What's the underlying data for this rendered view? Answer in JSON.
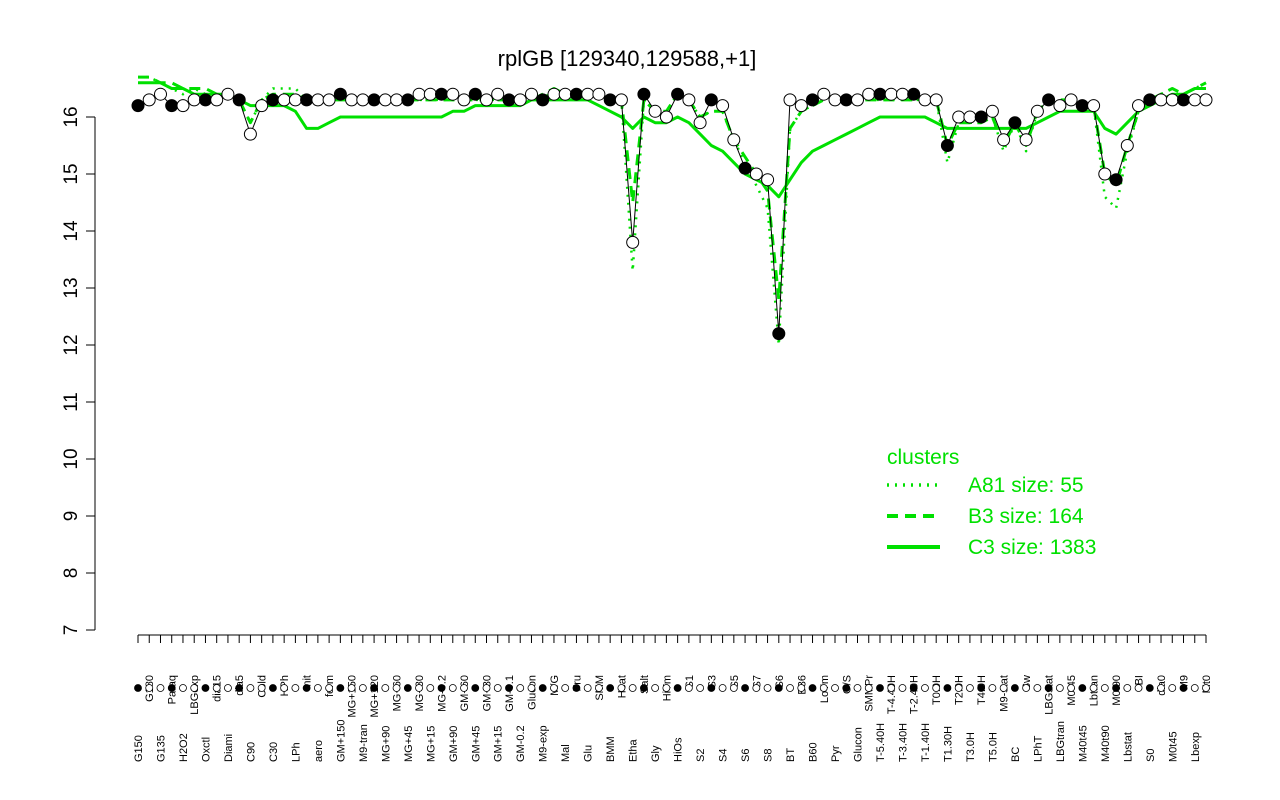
{
  "chart_data": {
    "type": "scatter",
    "title": "rplGB [129340,129588,+1]",
    "xlabel": "",
    "ylabel": "",
    "ylim": [
      7,
      17
    ],
    "yticks": [
      7,
      8,
      9,
      10,
      11,
      12,
      13,
      14,
      15,
      16
    ],
    "grid": false,
    "point_style": "filled and open circles",
    "x_tick_labels": [
      "G150",
      "G180",
      "G135",
      "Paraq",
      "H2O2",
      "LBGexp",
      "Oxctl",
      "dia15",
      "Diami",
      "dia5",
      "C90",
      "Cold",
      "C30",
      "HPh",
      "LPh",
      "nit",
      "aero",
      "ferm",
      "GM+150",
      "MG+150",
      "M9-tran",
      "MG+120",
      "MG+90",
      "MG+60",
      "MG+45",
      "MG+30",
      "MG+15",
      "MG-0.2",
      "GM+90",
      "GM+60",
      "GM+45",
      "GM+30",
      "GM+15",
      "GM-0.1",
      "GM-0.2",
      "Glucon",
      "M9-exp",
      "M/G",
      "Mal",
      "Fru",
      "Glu",
      "SMM",
      "BMM",
      "Heat",
      "Etha",
      "Salt",
      "Gly",
      "HiTm",
      "HiOs",
      "S1",
      "S2",
      "S3",
      "S4",
      "S5",
      "S6",
      "S7",
      "S8",
      "S6",
      "BT",
      "B36",
      "B60",
      "LoTm",
      "Pyr",
      "G/S",
      "Glucon",
      "SMMPr",
      "T-5.40H",
      "T-4.40H",
      "T-3.40H",
      "T-2.40H",
      "T-1.40H",
      "T0.0H",
      "T1.30H",
      "T2.0H",
      "T3.0H",
      "T4.0H",
      "T5.0H",
      "M9-stat",
      "BC",
      "Sw",
      "LPhT",
      "LBGstat",
      "LBGtran",
      "M0t45",
      "M40t45",
      "Lbtran",
      "M40t90",
      "M0t90",
      "Lbstat",
      "BI",
      "S0",
      "dia0",
      "M0t45",
      "M9",
      "Lbexp",
      "Mt0"
    ],
    "series": [
      {
        "type": "points",
        "values": [
          16.2,
          16.3,
          16.4,
          16.2,
          16.2,
          16.3,
          16.3,
          16.3,
          16.4,
          16.3,
          15.7,
          16.2,
          16.3,
          16.3,
          16.3,
          16.3,
          16.3,
          16.3,
          16.4,
          16.3,
          16.3,
          16.3,
          16.3,
          16.3,
          16.3,
          16.4,
          16.4,
          16.4,
          16.4,
          16.3,
          16.4,
          16.3,
          16.4,
          16.3,
          16.3,
          16.4,
          16.3,
          16.4,
          16.4,
          16.4,
          16.4,
          16.4,
          16.3,
          16.3,
          13.8,
          16.4,
          16.1,
          16.0,
          16.4,
          16.3,
          15.9,
          16.3,
          16.2,
          15.6,
          15.1,
          15.0,
          14.9,
          12.2,
          16.3,
          16.2,
          16.3,
          16.4,
          16.3,
          16.3,
          16.3,
          16.4,
          16.4,
          16.4,
          16.4,
          16.4,
          16.3,
          16.3,
          15.5,
          16.0,
          16.0,
          16.0,
          16.1,
          15.6,
          15.9,
          15.6,
          16.1,
          16.3,
          16.2,
          16.3,
          16.2,
          16.2,
          15.0,
          14.9,
          15.5,
          16.2,
          16.3,
          16.3,
          16.3,
          16.3,
          16.3,
          16.3
        ]
      }
    ],
    "clusters": [
      {
        "name": "A81",
        "legend": "A81 size: 55",
        "line_style": "dotted",
        "values": [
          16.7,
          16.7,
          16.6,
          16.5,
          16.4,
          16.5,
          16.4,
          16.4,
          16.4,
          16.3,
          15.9,
          16.3,
          16.5,
          16.5,
          16.5,
          16.3,
          16.3,
          16.3,
          16.3,
          16.3,
          16.3,
          16.3,
          16.3,
          16.3,
          16.3,
          16.3,
          16.3,
          16.3,
          16.3,
          16.3,
          16.3,
          16.3,
          16.3,
          16.3,
          16.3,
          16.3,
          16.3,
          16.5,
          16.4,
          16.4,
          16.4,
          16.4,
          16.3,
          16.3,
          13.3,
          16.3,
          16.1,
          16.1,
          16.4,
          16.3,
          16.0,
          16.1,
          16.1,
          15.6,
          15.2,
          14.8,
          14.4,
          12.0,
          15.8,
          16.1,
          16.2,
          16.3,
          16.3,
          16.3,
          16.3,
          16.3,
          16.3,
          16.3,
          16.3,
          16.3,
          16.3,
          16.3,
          15.2,
          15.9,
          15.9,
          15.9,
          16.0,
          15.4,
          15.9,
          15.4,
          16.1,
          16.3,
          16.2,
          16.3,
          16.2,
          16.2,
          14.6,
          14.4,
          15.4,
          16.1,
          16.3,
          16.4,
          16.5,
          16.4,
          16.5,
          16.6
        ]
      },
      {
        "name": "B3",
        "legend": "B3 size: 164",
        "line_style": "dashed",
        "values": [
          16.7,
          16.7,
          16.6,
          16.6,
          16.5,
          16.5,
          16.5,
          16.4,
          16.4,
          16.3,
          15.9,
          16.3,
          16.4,
          16.4,
          16.4,
          16.3,
          16.3,
          16.3,
          16.3,
          16.3,
          16.3,
          16.3,
          16.3,
          16.3,
          16.3,
          16.3,
          16.3,
          16.3,
          16.3,
          16.3,
          16.3,
          16.3,
          16.3,
          16.3,
          16.3,
          16.3,
          16.4,
          16.5,
          16.4,
          16.4,
          16.4,
          16.4,
          16.3,
          16.3,
          14.5,
          16.3,
          16.1,
          16.1,
          16.4,
          16.3,
          16.0,
          16.1,
          16.1,
          15.6,
          15.3,
          15.0,
          14.7,
          12.8,
          15.8,
          16.1,
          16.2,
          16.3,
          16.3,
          16.3,
          16.3,
          16.3,
          16.3,
          16.3,
          16.3,
          16.3,
          16.3,
          16.3,
          15.5,
          15.9,
          15.9,
          15.9,
          16.0,
          15.5,
          15.9,
          15.5,
          16.1,
          16.3,
          16.3,
          16.3,
          16.2,
          16.2,
          15.0,
          14.8,
          15.5,
          16.1,
          16.3,
          16.4,
          16.5,
          16.4,
          16.5,
          16.6
        ]
      },
      {
        "name": "C3",
        "legend": "C3 size: 1383",
        "line_style": "solid",
        "values": [
          16.6,
          16.6,
          16.6,
          16.5,
          16.5,
          16.4,
          16.4,
          16.4,
          16.4,
          16.3,
          16.2,
          16.2,
          16.2,
          16.2,
          16.1,
          15.8,
          15.8,
          15.9,
          16.0,
          16.0,
          16.0,
          16.0,
          16.0,
          16.0,
          16.0,
          16.0,
          16.0,
          16.0,
          16.1,
          16.1,
          16.2,
          16.2,
          16.2,
          16.2,
          16.2,
          16.3,
          16.3,
          16.3,
          16.3,
          16.3,
          16.3,
          16.2,
          16.1,
          16.0,
          15.8,
          16.0,
          15.9,
          15.9,
          16.0,
          15.9,
          15.7,
          15.5,
          15.4,
          15.2,
          15.0,
          14.9,
          14.8,
          14.6,
          14.9,
          15.2,
          15.4,
          15.5,
          15.6,
          15.7,
          15.8,
          15.9,
          16.0,
          16.0,
          16.0,
          16.0,
          16.0,
          15.9,
          15.8,
          15.8,
          15.8,
          15.8,
          15.8,
          15.8,
          15.8,
          15.8,
          15.9,
          16.0,
          16.1,
          16.1,
          16.1,
          16.1,
          15.8,
          15.7,
          15.9,
          16.1,
          16.2,
          16.3,
          16.4,
          16.4,
          16.5,
          16.5
        ]
      }
    ],
    "legend": {
      "title": "clusters",
      "placement": "bottom-right",
      "color": "#00e000"
    },
    "colors": {
      "cluster_lines": "#00e000",
      "axes": "#000000",
      "points": "#000000"
    }
  }
}
